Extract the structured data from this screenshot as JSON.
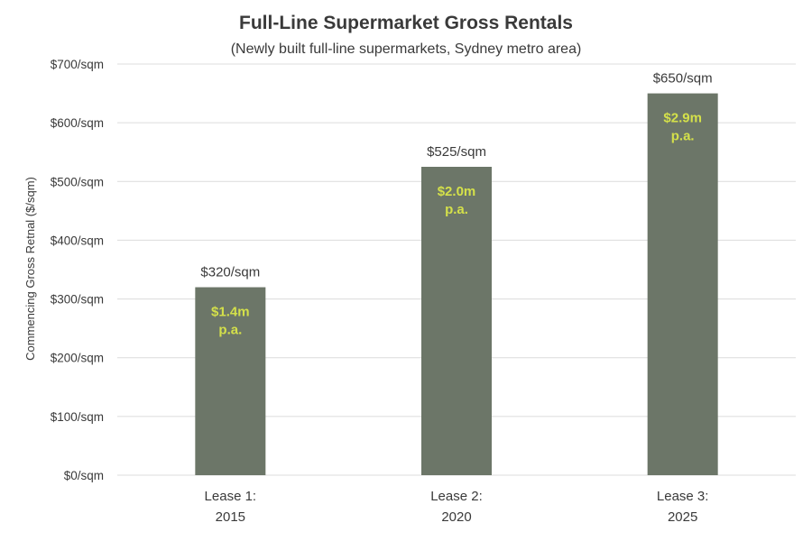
{
  "chart_data": {
    "type": "bar",
    "title": "Full-Line Supermarket Gross Rentals",
    "subtitle": "(Newly built full-line supermarkets, Sydney metro area)",
    "ylabel": "Commencing Gross Retnal ($/sqm)",
    "xlabel": "",
    "categories": [
      [
        "Lease 1:",
        "2015"
      ],
      [
        "Lease 2:",
        "2020"
      ],
      [
        "Lease 3:",
        "2025"
      ]
    ],
    "values": [
      320,
      525,
      650
    ],
    "value_labels": [
      "$320/sqm",
      "$525/sqm",
      "$650/sqm"
    ],
    "inner_labels": [
      [
        "$1.4m",
        "p.a."
      ],
      [
        "$2.0m",
        "p.a."
      ],
      [
        "$2.9m",
        "p.a."
      ]
    ],
    "ylim": [
      0,
      700
    ],
    "yticks": [
      0,
      100,
      200,
      300,
      400,
      500,
      600,
      700
    ],
    "ytick_labels": [
      "$0/sqm",
      "$100/sqm",
      "$200/sqm",
      "$300/sqm",
      "$400/sqm",
      "$500/sqm",
      "$600/sqm",
      "$700/sqm"
    ],
    "grid": true,
    "legend": "none",
    "colors": {
      "bar": "#6c7668",
      "inner_text": "#d4e04a",
      "text": "#3a3a3a",
      "grid": "#dcdcdc"
    }
  }
}
